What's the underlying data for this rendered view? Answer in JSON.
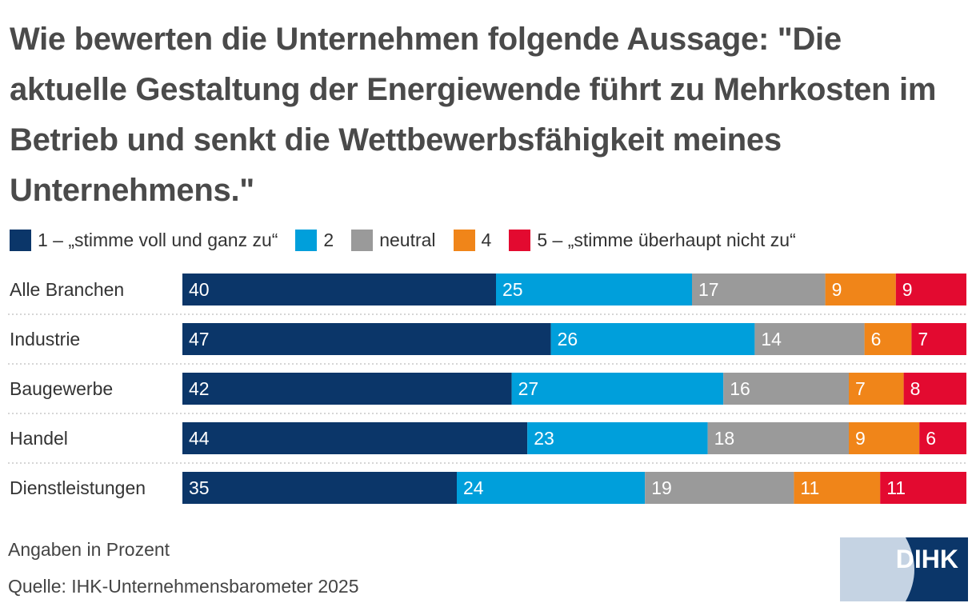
{
  "title": "Wie bewerten die Unternehmen folgende Aussage: \"Die aktuelle Gestaltung der Energiewende führt zu Mehrkosten im Betrieb und senkt die Wettbewerbsfähigkeit meines Unternehmens.\"",
  "legend": [
    {
      "label": "1 – „stimme voll und ganz zu“",
      "color": "#0b3669"
    },
    {
      "label": "2",
      "color": "#009fdb"
    },
    {
      "label": "neutral",
      "color": "#9a9a9a"
    },
    {
      "label": "4",
      "color": "#f08519"
    },
    {
      "label": "5 – „stimme überhaupt nicht zu“",
      "color": "#e30a30"
    }
  ],
  "chart_data": {
    "type": "bar",
    "orientation": "horizontal",
    "stacked": true,
    "unit": "percent",
    "categories": [
      "Alle Branchen",
      "Industrie",
      "Baugewerbe",
      "Handel",
      "Dienstleistungen"
    ],
    "series": [
      {
        "name": "1 – „stimme voll und ganz zu“",
        "color": "#0b3669",
        "values": [
          40,
          47,
          42,
          44,
          35
        ]
      },
      {
        "name": "2",
        "color": "#009fdb",
        "values": [
          25,
          26,
          27,
          23,
          24
        ]
      },
      {
        "name": "neutral",
        "color": "#9a9a9a",
        "values": [
          17,
          14,
          16,
          18,
          19
        ]
      },
      {
        "name": "4",
        "color": "#f08519",
        "values": [
          9,
          6,
          7,
          9,
          11
        ]
      },
      {
        "name": "5 – „stimme überhaupt nicht zu“",
        "color": "#e30a30",
        "values": [
          9,
          7,
          8,
          6,
          11
        ]
      }
    ],
    "xlim": [
      0,
      100
    ],
    "grid": false,
    "legend_position": "top"
  },
  "footer": {
    "note": "Angaben in Prozent",
    "source": "Quelle: IHK-Unternehmensbarometer 2025"
  },
  "logo": {
    "text": "DIHK",
    "colors": {
      "light": "#c5d3e3",
      "dark": "#0b3669"
    }
  }
}
